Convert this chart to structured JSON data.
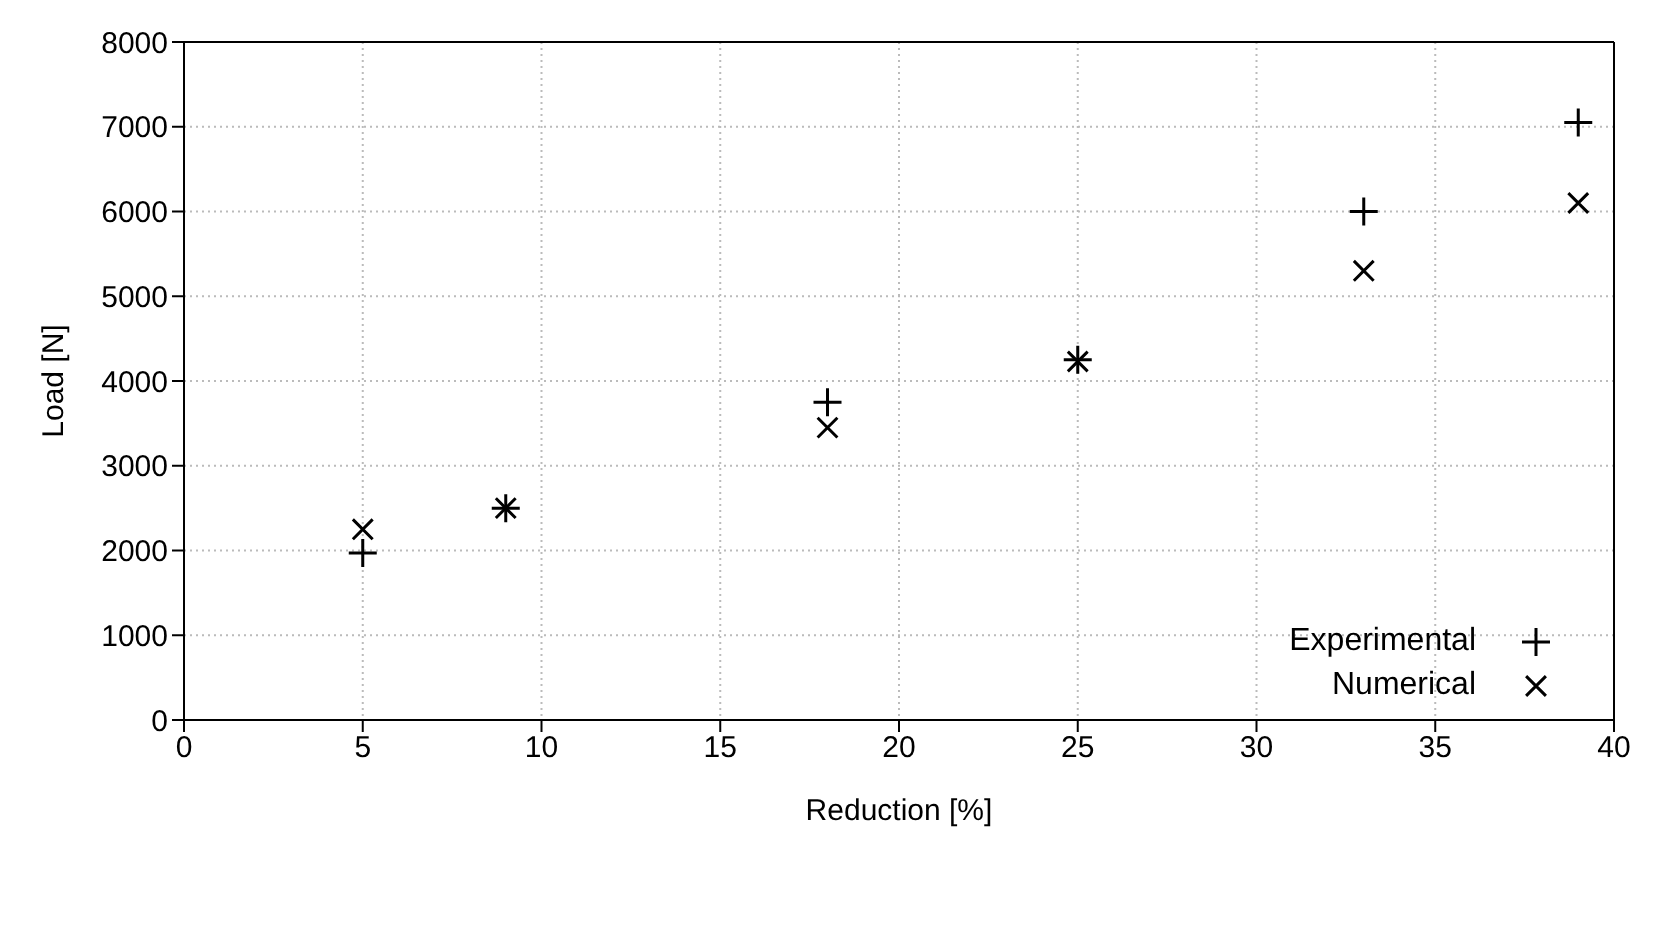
{
  "chart_data": {
    "type": "scatter",
    "xlabel": "Reduction [%]",
    "ylabel": "Load [N]",
    "xlim": [
      0,
      40
    ],
    "xticks": [
      0,
      5,
      10,
      15,
      20,
      25,
      30,
      35,
      40
    ],
    "ylim": [
      0,
      8000
    ],
    "yticks": [
      0,
      1000,
      2000,
      3000,
      4000,
      5000,
      6000,
      7000,
      8000
    ],
    "grid": true,
    "legend": "bottom right",
    "marker": "cross",
    "series": [
      {
        "name": "Experimental",
        "color": "#000000",
        "x": [
          5,
          9,
          18,
          25,
          33,
          39
        ],
        "values": [
          1970,
          2500,
          3750,
          4250,
          6000,
          7050
        ]
      },
      {
        "name": "Numerical",
        "color": "#000000",
        "x": [
          5,
          9,
          18,
          25,
          33,
          39
        ],
        "values": [
          2250,
          2500,
          3450,
          4230,
          5300,
          6100
        ]
      }
    ]
  }
}
